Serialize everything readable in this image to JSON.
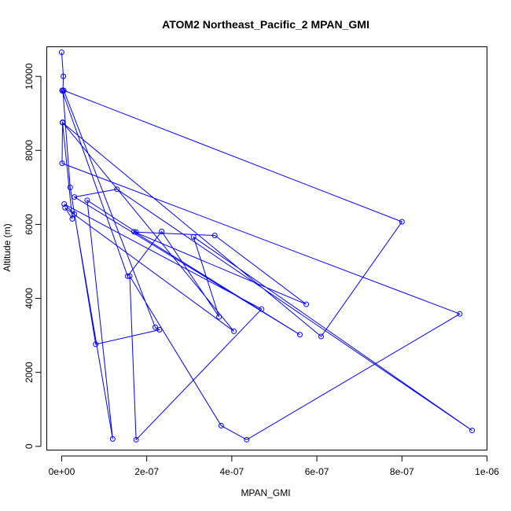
{
  "chart_data": {
    "type": "line",
    "title": "ATOM2 Northeast_Pacific_2 MPAN_GMI",
    "xlabel": "MPAN_GMI",
    "ylabel": "Altitude (m)",
    "xlim": [
      -3.5e-08,
      1e-06
    ],
    "ylim": [
      -100,
      10800
    ],
    "x_ticks": [
      {
        "value": 0,
        "label": "0e+00"
      },
      {
        "value": 2e-07,
        "label": "2e-07"
      },
      {
        "value": 4e-07,
        "label": "4e-07"
      },
      {
        "value": 6e-07,
        "label": "6e-07"
      },
      {
        "value": 8e-07,
        "label": "8e-07"
      },
      {
        "value": 1e-06,
        "label": "1e-06"
      }
    ],
    "y_ticks": [
      {
        "value": 0,
        "label": "0"
      },
      {
        "value": 2000,
        "label": "2000"
      },
      {
        "value": 4000,
        "label": "4000"
      },
      {
        "value": 6000,
        "label": "6000"
      },
      {
        "value": 8000,
        "label": "8000"
      },
      {
        "value": 10000,
        "label": "10000"
      }
    ],
    "grid": false,
    "series_color": "#0000ff",
    "series": [
      {
        "x": [
          0.0,
          4e-09,
          3e-09,
          2e-08,
          8e-08,
          2.3e-07,
          2.2e-07,
          5e-09,
          8e-07,
          6.1e-07,
          2e-09,
          2.5e-08,
          8e-09,
          4.05e-07,
          2e-09,
          1e-09,
          9.36e-07,
          4.35e-07,
          3.75e-07,
          1.6e-07,
          1.75e-07,
          4.7e-07,
          6e-09,
          3e-08,
          1.2e-07,
          6e-08,
          1.75e-07,
          3.6e-07,
          5.75e-07,
          1.7e-07,
          5.6e-07,
          3e-08,
          1.3e-07,
          9.65e-07,
          3.1e-07,
          3.7e-07,
          2.35e-07,
          1.55e-07,
          1e-09
        ],
        "y": [
          10650,
          10000,
          9600,
          7000,
          2760,
          3150,
          3220,
          9620,
          6070,
          2970,
          8750,
          6150,
          6450,
          3110,
          8760,
          7650,
          3580,
          180,
          560,
          4600,
          180,
          3710,
          6550,
          6280,
          200,
          6650,
          5790,
          5700,
          3840,
          5800,
          3020,
          6740,
          6950,
          430,
          5660,
          3500,
          5810,
          4600,
          9620
        ]
      }
    ]
  }
}
